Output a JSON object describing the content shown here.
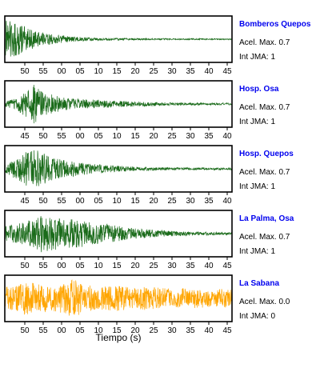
{
  "chart_data": {
    "type": "line",
    "xlabel": "Tiempo (s)",
    "acel_label": "Acel. Max.",
    "int_label": "Int JMA:",
    "panels": [
      {
        "station": "Bomberos Quepos",
        "acel_max": "0.7",
        "int_jma": "1",
        "color": "#1a6b1a",
        "x_ticks": [
          "50",
          "55",
          "00",
          "05",
          "10",
          "15",
          "20",
          "25",
          "30",
          "35",
          "40",
          "45"
        ],
        "envelope": [
          0.95,
          0.8,
          0.6,
          0.42,
          0.3,
          0.22,
          0.16,
          0.12,
          0.09,
          0.07,
          0.06,
          0.05,
          0.045,
          0.04,
          0.04,
          0.035,
          0.035,
          0.03,
          0.03,
          0.03,
          0.028,
          0.028,
          0.025,
          0.025
        ]
      },
      {
        "station": "Hosp. Osa",
        "acel_max": "0.7",
        "int_jma": "1",
        "color": "#1a6b1a",
        "x_ticks": [
          "45",
          "50",
          "55",
          "00",
          "05",
          "10",
          "15",
          "20",
          "25",
          "30",
          "35",
          "40"
        ],
        "envelope": [
          0.15,
          0.25,
          0.55,
          0.95,
          0.6,
          0.4,
          0.3,
          0.25,
          0.22,
          0.2,
          0.18,
          0.16,
          0.14,
          0.12,
          0.1,
          0.09,
          0.08,
          0.07,
          0.06,
          0.06,
          0.05,
          0.05,
          0.05,
          0.04
        ]
      },
      {
        "station": "Hosp. Quepos",
        "acel_max": "0.7",
        "int_jma": "1",
        "color": "#1a6b1a",
        "x_ticks": [
          "45",
          "50",
          "55",
          "00",
          "05",
          "10",
          "15",
          "20",
          "25",
          "30",
          "35",
          "40"
        ],
        "envelope": [
          0.2,
          0.45,
          0.75,
          0.95,
          0.7,
          0.5,
          0.42,
          0.35,
          0.28,
          0.22,
          0.18,
          0.15,
          0.12,
          0.1,
          0.09,
          0.08,
          0.07,
          0.06,
          0.06,
          0.05,
          0.05,
          0.05,
          0.05,
          0.05
        ]
      },
      {
        "station": "La Palma, Osa",
        "acel_max": "0.7",
        "int_jma": "1",
        "color": "#1a6b1a",
        "x_ticks": [
          "50",
          "55",
          "00",
          "05",
          "10",
          "15",
          "20",
          "25",
          "30",
          "35",
          "40",
          "45"
        ],
        "envelope": [
          0.35,
          0.45,
          0.55,
          0.7,
          0.95,
          0.8,
          0.65,
          0.7,
          0.6,
          0.5,
          0.45,
          0.4,
          0.32,
          0.26,
          0.22,
          0.18,
          0.15,
          0.12,
          0.1,
          0.09,
          0.08,
          0.07,
          0.06,
          0.06
        ]
      },
      {
        "station": "La Sabana",
        "acel_max": "0.0",
        "int_jma": "0",
        "color": "#ffa500",
        "x_ticks": [
          "50",
          "55",
          "00",
          "05",
          "10",
          "15",
          "20",
          "25",
          "30",
          "35",
          "40",
          "45"
        ],
        "envelope": [
          0.55,
          0.6,
          0.8,
          0.7,
          0.65,
          0.6,
          0.7,
          0.9,
          0.65,
          0.6,
          0.55,
          0.6,
          0.55,
          0.5,
          0.55,
          0.5,
          0.5,
          0.45,
          0.5,
          0.45,
          0.45,
          0.4,
          0.45,
          0.4
        ]
      }
    ]
  }
}
